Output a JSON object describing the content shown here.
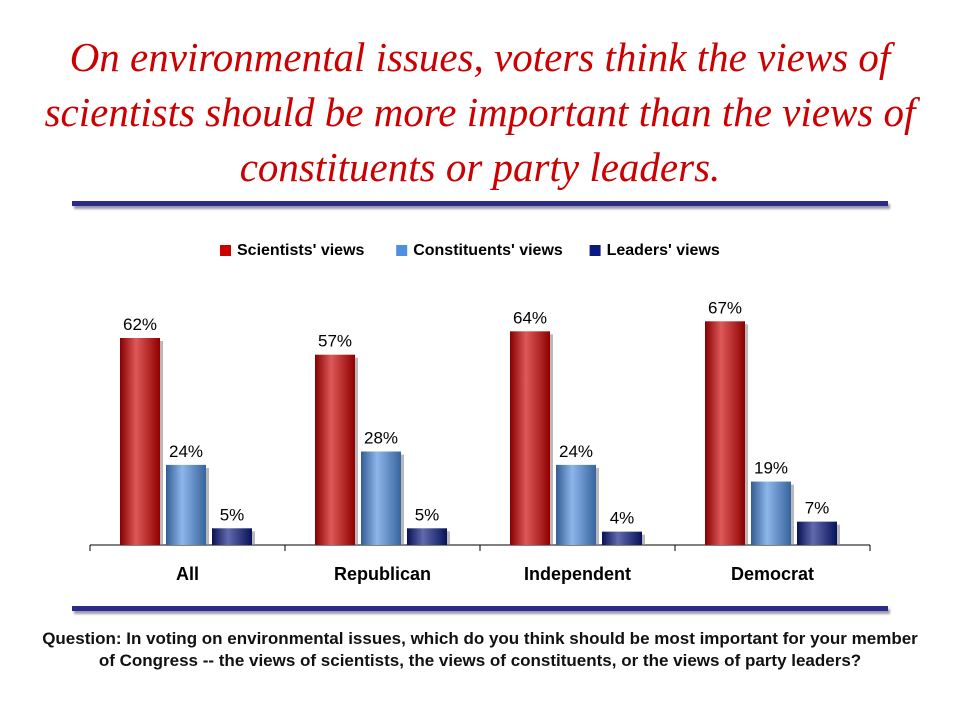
{
  "title": "On environmental issues, voters think the views of scientists should be more important than the views of constituents or party leaders.",
  "question": "Question: In voting on environmental issues, which do you think should be most important for your member of Congress -- the views of scientists, the views of constituents, or the views of party leaders?",
  "chart_data": {
    "type": "bar",
    "categories": [
      "All",
      "Republican",
      "Independent",
      "Democrat"
    ],
    "series": [
      {
        "name": "Scientists' views",
        "values": [
          62,
          57,
          64,
          67
        ],
        "labels": [
          "62%",
          "57%",
          "64%",
          "67%"
        ],
        "color": "#cc0000"
      },
      {
        "name": "Constituents' views",
        "values": [
          24,
          28,
          24,
          19
        ],
        "labels": [
          "24%",
          "28%",
          "24%",
          "19%"
        ],
        "color": "#4f8fe0"
      },
      {
        "name": "Leaders' views",
        "values": [
          5,
          5,
          4,
          7
        ],
        "labels": [
          "5%",
          "5%",
          "4%",
          "7%"
        ],
        "color": "#0a1a80"
      }
    ],
    "unit": "%",
    "ylim": [
      0,
      100
    ],
    "grid": false,
    "legend": "top-center"
  }
}
